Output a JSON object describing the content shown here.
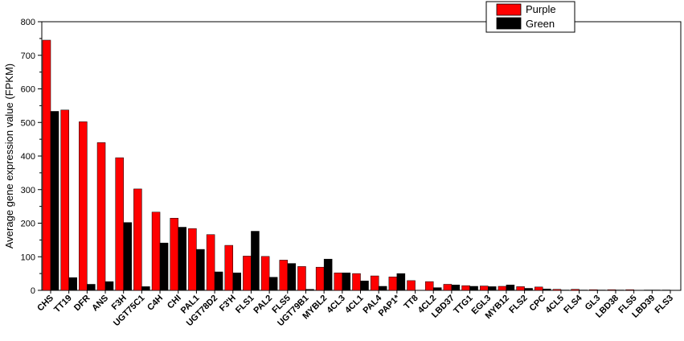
{
  "chart_data": {
    "type": "bar",
    "title": "",
    "xlabel": "",
    "ylabel": "Average gene expression value (FPKM)",
    "ylim": [
      0,
      800
    ],
    "yticks": [
      0,
      100,
      200,
      300,
      400,
      500,
      600,
      700,
      800
    ],
    "legend_position": "top-right",
    "categories": [
      "CHS",
      "TT19",
      "DFR",
      "ANS",
      "F3H",
      "UGT75C1",
      "C4H",
      "CHI",
      "PAL1",
      "UGT78D2",
      "F3'H",
      "FLS1",
      "PAL2",
      "FLS5",
      "UGT79B1",
      "MYBL2",
      "4CL3",
      "4CL1",
      "PAL4",
      "PAP1*",
      "TT8",
      "4CL2",
      "LBD37",
      "TTG1",
      "EGL3",
      "MYB12",
      "FLS2",
      "CPC",
      "4CL5",
      "FLS4",
      "GL3",
      "LBD38",
      "FLS5",
      "LBD39",
      "FLS3"
    ],
    "series": [
      {
        "name": "Purple",
        "color": "#ff0000",
        "values": [
          745,
          537,
          502,
          440,
          395,
          302,
          233,
          215,
          184,
          166,
          134,
          102,
          101,
          90,
          71,
          69,
          52,
          50,
          43,
          40,
          29,
          26,
          18,
          14,
          13,
          12,
          11,
          10,
          3,
          3,
          2,
          2,
          2,
          1,
          1
        ]
      },
      {
        "name": "Green",
        "color": "#000000",
        "values": [
          533,
          38,
          18,
          26,
          202,
          11,
          141,
          188,
          122,
          55,
          52,
          176,
          39,
          80,
          3,
          93,
          52,
          28,
          12,
          50,
          0,
          8,
          16,
          12,
          11,
          16,
          6,
          4,
          1,
          1,
          1,
          1,
          0,
          1,
          0
        ]
      }
    ]
  }
}
